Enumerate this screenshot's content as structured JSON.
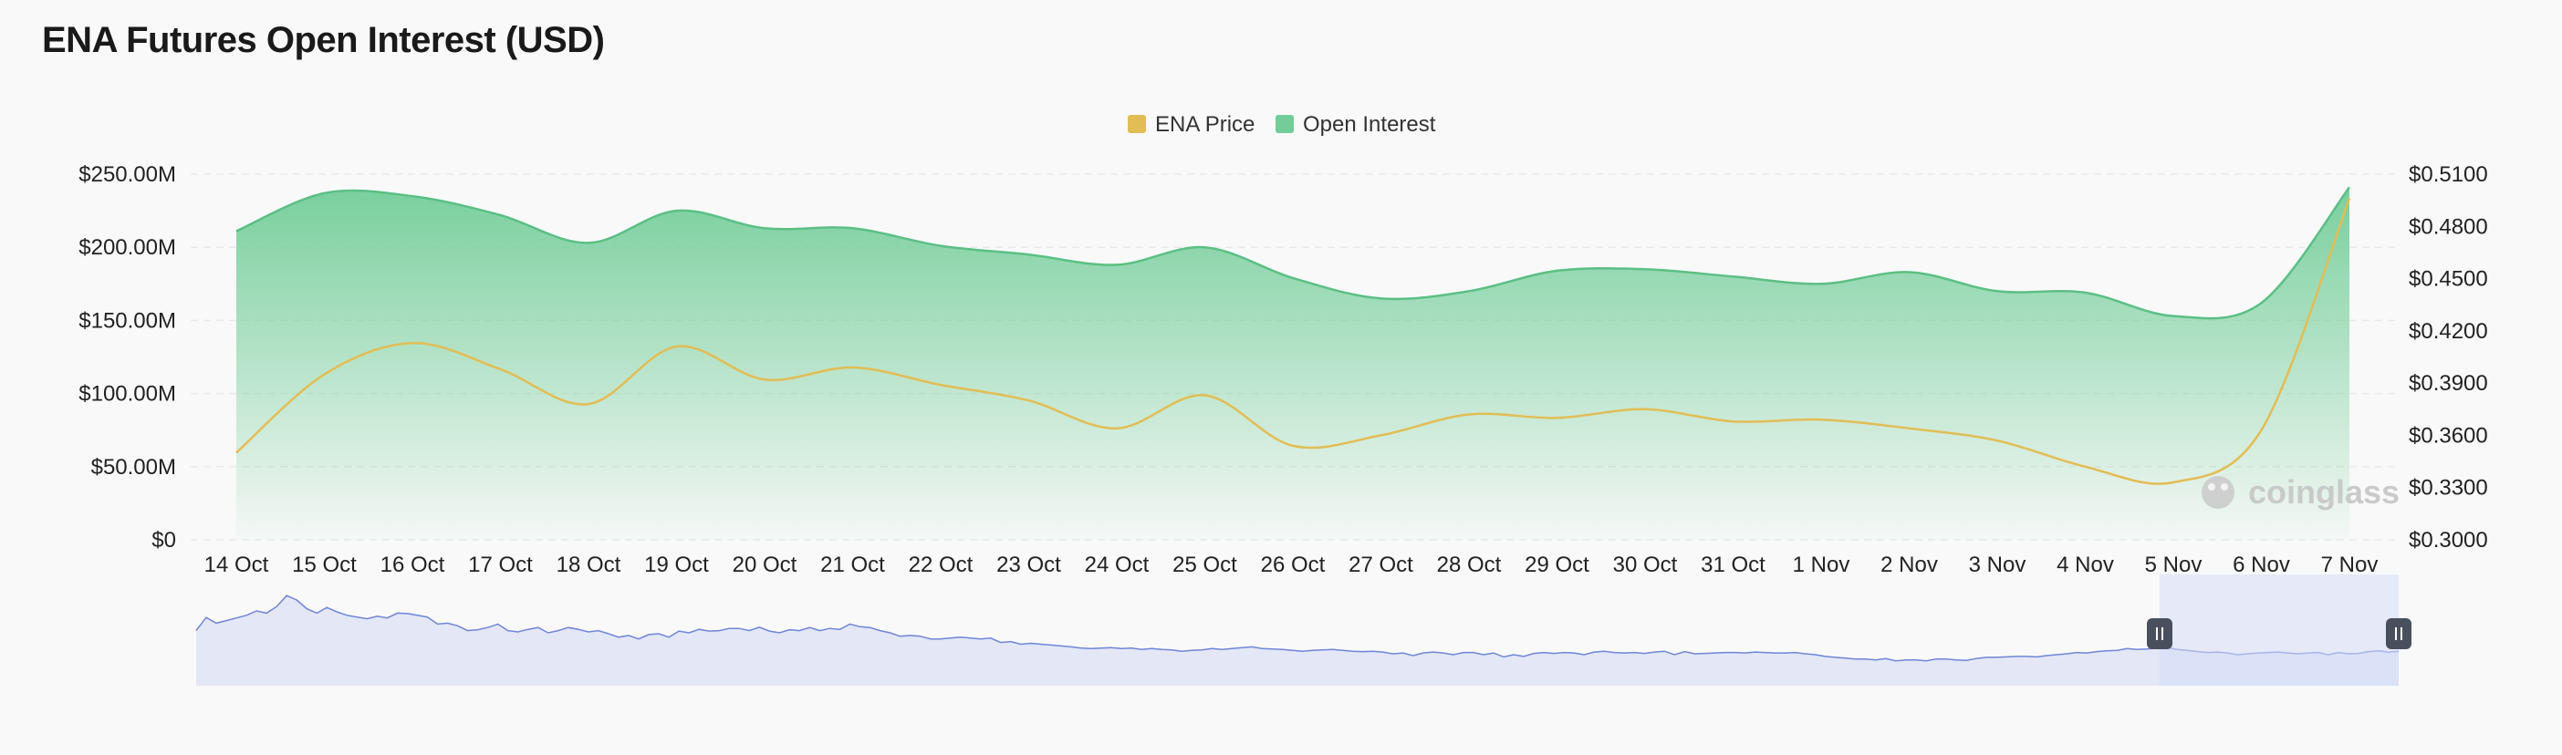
{
  "page": {
    "title": "ENA Futures Open Interest (USD)"
  },
  "watermark": {
    "text": "coinglass"
  },
  "colors": {
    "price": "#e2bd55",
    "oi_fill": "#72cd98",
    "oi_line": "#5cbf85",
    "overview": "#6f86d6",
    "selector": "#d6dcf7",
    "handle": "#4a4f5e"
  },
  "chart_data": {
    "type": "area",
    "title": "ENA Futures Open Interest (USD)",
    "categories": [
      "14 Oct",
      "15 Oct",
      "16 Oct",
      "17 Oct",
      "18 Oct",
      "19 Oct",
      "20 Oct",
      "21 Oct",
      "22 Oct",
      "23 Oct",
      "24 Oct",
      "25 Oct",
      "26 Oct",
      "27 Oct",
      "28 Oct",
      "29 Oct",
      "30 Oct",
      "31 Oct",
      "1 Nov",
      "2 Nov",
      "3 Nov",
      "4 Nov",
      "5 Nov",
      "6 Nov",
      "7 Nov"
    ],
    "series": [
      {
        "name": "Open Interest",
        "axis": "left",
        "type": "area",
        "values": [
          211,
          237,
          235,
          222,
          203,
          225,
          213,
          213,
          201,
          195,
          188,
          200,
          179,
          165,
          170,
          184,
          185,
          180,
          175,
          183,
          170,
          169,
          153,
          162,
          241
        ]
      },
      {
        "name": "ENA Price",
        "axis": "right",
        "type": "line",
        "values": [
          0.35,
          0.395,
          0.413,
          0.398,
          0.378,
          0.411,
          0.392,
          0.399,
          0.389,
          0.38,
          0.364,
          0.383,
          0.354,
          0.36,
          0.372,
          0.37,
          0.375,
          0.368,
          0.369,
          0.364,
          0.357,
          0.342,
          0.333,
          0.363,
          0.496
        ]
      }
    ],
    "legend": [
      {
        "name": "ENA Price"
      },
      {
        "name": "Open Interest"
      }
    ],
    "y_left": {
      "ticks": [
        "$0",
        "$50.00M",
        "$100.00M",
        "$150.00M",
        "$200.00M",
        "$250.00M"
      ],
      "min": 0,
      "max": 250
    },
    "y_right": {
      "ticks": [
        "$0.3000",
        "$0.3300",
        "$0.3600",
        "$0.3900",
        "$0.4200",
        "$0.4500",
        "$0.4800",
        "$0.5100"
      ],
      "min": 0.3,
      "max": 0.51
    },
    "legend_position": "top-center",
    "overview": {
      "values": [
        0.55,
        0.85,
        0.72,
        0.78,
        0.84,
        0.9,
        1.0,
        0.95,
        1.1,
        1.35,
        1.25,
        1.05,
        0.95,
        1.08,
        0.98,
        0.9,
        0.86,
        0.82,
        0.88,
        0.84,
        0.95,
        0.94,
        0.9,
        0.86,
        0.7,
        0.72,
        0.66,
        0.55,
        0.57,
        0.62,
        0.7,
        0.55,
        0.52,
        0.58,
        0.62,
        0.5,
        0.55,
        0.62,
        0.58,
        0.52,
        0.55,
        0.48,
        0.4,
        0.44,
        0.36,
        0.46,
        0.48,
        0.4,
        0.54,
        0.5,
        0.58,
        0.54,
        0.55,
        0.6,
        0.6,
        0.55,
        0.63,
        0.54,
        0.5,
        0.57,
        0.55,
        0.62,
        0.55,
        0.6,
        0.58,
        0.7,
        0.64,
        0.62,
        0.55,
        0.5,
        0.42,
        0.44,
        0.42,
        0.36,
        0.36,
        0.38,
        0.4,
        0.38,
        0.36,
        0.38,
        0.28,
        0.3,
        0.24,
        0.26,
        0.24,
        0.22,
        0.2,
        0.18,
        0.15,
        0.14,
        0.15,
        0.16,
        0.14,
        0.15,
        0.12,
        0.14,
        0.12,
        0.11,
        0.08,
        0.1,
        0.11,
        0.14,
        0.12,
        0.14,
        0.16,
        0.18,
        0.14,
        0.13,
        0.12,
        0.1,
        0.08,
        0.1,
        0.11,
        0.12,
        0.1,
        0.08,
        0.07,
        0.08,
        0.06,
        0.02,
        0.04,
        -0.02,
        0.04,
        0.06,
        0.04,
        0.0,
        0.05,
        0.05,
        0.0,
        0.04,
        -0.05,
        0.0,
        -0.04,
        0.03,
        0.05,
        0.03,
        0.05,
        0.04,
        0.0,
        0.06,
        0.08,
        0.05,
        0.04,
        0.05,
        0.03,
        0.06,
        0.08,
        0.0,
        0.07,
        0.02,
        0.03,
        0.04,
        0.05,
        0.05,
        0.04,
        0.06,
        0.05,
        0.04,
        0.04,
        0.05,
        0.02,
        0.0,
        -0.04,
        -0.06,
        -0.08,
        -0.1,
        -0.1,
        -0.12,
        -0.09,
        -0.14,
        -0.12,
        -0.12,
        -0.14,
        -0.1,
        -0.1,
        -0.12,
        -0.13,
        -0.09,
        -0.06,
        -0.06,
        -0.05,
        -0.04,
        -0.04,
        -0.05,
        -0.02,
        0.0,
        0.02,
        0.05,
        0.04,
        0.07,
        0.09,
        0.1,
        0.14,
        0.12,
        0.13,
        0.15,
        0.16,
        0.12,
        0.1,
        0.07,
        0.05,
        0.06,
        0.04,
        0.0,
        0.02,
        0.04,
        0.05,
        0.06,
        0.04,
        0.02,
        0.04,
        0.05,
        0.0,
        0.05,
        0.02,
        0.03,
        0.07,
        0.09,
        0.06,
        0.08
      ]
    }
  }
}
